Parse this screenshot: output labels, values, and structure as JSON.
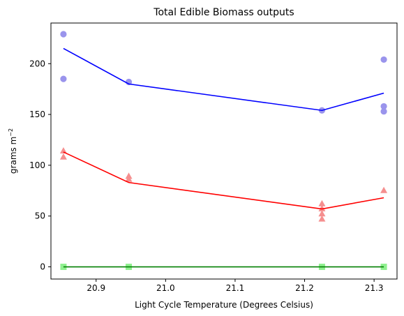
{
  "chart_data": {
    "type": "scatter",
    "title": "Total Edible Biomass outputs",
    "xlabel": "Light Cycle Temperature (Degrees Celsius)",
    "ylabel_main": "grams m",
    "ylabel_sup": "−2",
    "xlim": [
      20.835,
      21.333
    ],
    "ylim": [
      -12,
      240
    ],
    "xticks": [
      20.9,
      21.0,
      21.1,
      21.2,
      21.3
    ],
    "xtick_labels": [
      "20.9",
      "21.0",
      "21.1",
      "21.2",
      "21.3"
    ],
    "yticks": [
      0,
      50,
      100,
      150,
      200
    ],
    "ytick_labels": [
      "0",
      "50",
      "100",
      "150",
      "200"
    ],
    "grid": false,
    "series": [
      {
        "marker": "circle",
        "point_color": "#9a94ec",
        "line_color": "#0000ff",
        "points": [
          [
            20.853,
            229
          ],
          [
            20.853,
            185
          ],
          [
            20.947,
            182
          ],
          [
            21.225,
            154
          ],
          [
            21.314,
            204
          ],
          [
            21.314,
            158
          ],
          [
            21.314,
            153
          ]
        ],
        "line": [
          [
            20.853,
            215
          ],
          [
            20.947,
            180
          ],
          [
            21.225,
            154
          ],
          [
            21.314,
            171
          ]
        ]
      },
      {
        "marker": "triangle",
        "point_color": "#f58f8f",
        "line_color": "#ff0000",
        "points": [
          [
            20.853,
            114
          ],
          [
            20.853,
            108
          ],
          [
            20.947,
            89
          ],
          [
            20.947,
            86
          ],
          [
            21.225,
            62
          ],
          [
            21.225,
            57
          ],
          [
            21.225,
            52
          ],
          [
            21.225,
            47
          ],
          [
            21.314,
            75
          ]
        ],
        "line": [
          [
            20.853,
            113
          ],
          [
            20.947,
            83
          ],
          [
            21.225,
            57
          ],
          [
            21.314,
            68
          ]
        ]
      },
      {
        "marker": "square",
        "point_color": "#8ff08f",
        "line_color": "#007f00",
        "points": [
          [
            20.853,
            0
          ],
          [
            20.947,
            0
          ],
          [
            21.225,
            0
          ],
          [
            21.314,
            0
          ]
        ],
        "line": [
          [
            20.853,
            0
          ],
          [
            20.947,
            0
          ],
          [
            21.225,
            0
          ],
          [
            21.314,
            0
          ]
        ]
      }
    ]
  }
}
